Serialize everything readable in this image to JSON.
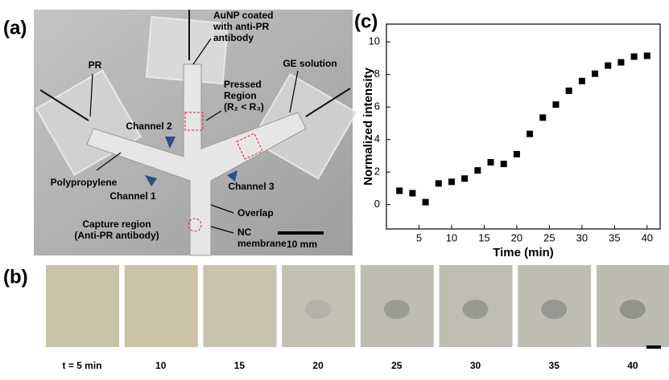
{
  "panels": {
    "a": "(a)",
    "b": "(b)",
    "c": "(c)"
  },
  "photo_labels": {
    "aunp": [
      "AuNP coated",
      "with anti-PR",
      "antibody"
    ],
    "pr": [
      "PR"
    ],
    "ge": [
      "GE solution"
    ],
    "pressed": [
      "Pressed",
      "Region",
      "(R₂ < R₃)"
    ],
    "channel2": [
      "Channel 2"
    ],
    "polypropylene": [
      "Polypropylene"
    ],
    "channel1": [
      "Channel 1"
    ],
    "channel3": [
      "Channel 3"
    ],
    "overlap": [
      "Overlap"
    ],
    "capture": [
      "Capture region",
      "(Anti-PR antibody)"
    ],
    "nc": [
      "NC",
      "membrane"
    ],
    "scale": [
      "10 mm"
    ]
  },
  "strip_labels": [
    "t = 5 min",
    "10",
    "15",
    "20",
    "25",
    "30",
    "35",
    "40"
  ],
  "chart_data": {
    "type": "scatter",
    "x_label": "Time (min)",
    "y_label": "Normalized intensity",
    "x": [
      2,
      4,
      6,
      8,
      10,
      12,
      14,
      16,
      18,
      20,
      22,
      24,
      26,
      28,
      30,
      32,
      34,
      36,
      38,
      40
    ],
    "values": [
      0.85,
      0.7,
      0.15,
      1.3,
      1.4,
      1.6,
      2.1,
      2.6,
      2.5,
      3.1,
      4.35,
      5.35,
      6.15,
      7.0,
      7.6,
      8.05,
      8.55,
      8.75,
      9.1,
      9.15
    ],
    "color": "#000000",
    "xlim": [
      0,
      42
    ],
    "ylim": [
      -1.5,
      11.1
    ],
    "xticks": [
      5,
      10,
      15,
      20,
      25,
      30,
      35,
      40
    ],
    "yticks": [
      0,
      2,
      4,
      6,
      8,
      10
    ]
  }
}
